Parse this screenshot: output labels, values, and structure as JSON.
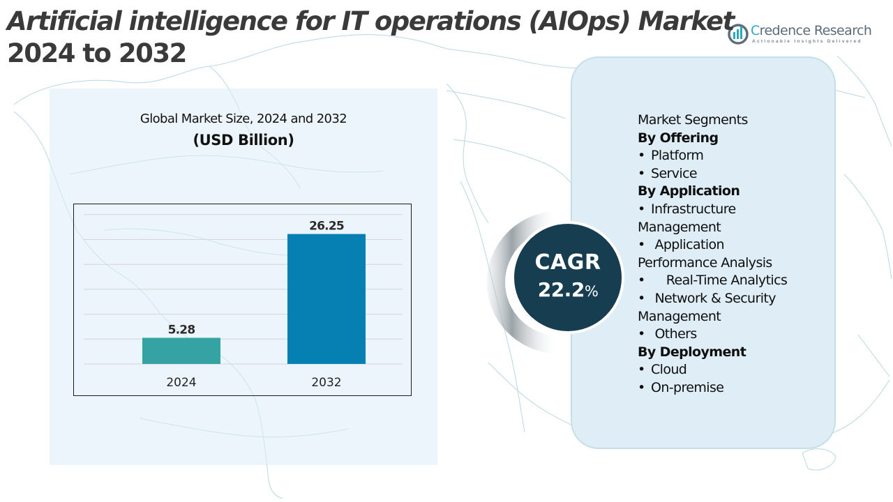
{
  "header": {
    "title_line1": "Artificial intelligence for IT operations (AIOps) Market",
    "title_line2": "2024 to 2032"
  },
  "logo": {
    "name_first_letter": "C",
    "name_rest": "redence Research",
    "tagline": "Actionable Insights Delivered",
    "icon": "bar-chart-globe-icon"
  },
  "chart_section": {
    "title": "Global Market Size, 2024 and 2032",
    "unit": "(USD Billion)"
  },
  "chart_data": {
    "type": "bar",
    "title": "Global Market Size, 2024 and 2032",
    "subtitle": "(USD Billion)",
    "categories": [
      "2024",
      "2032"
    ],
    "values": [
      5.28,
      26.25
    ],
    "data_labels": [
      "5.28",
      "26.25"
    ],
    "colors": [
      "#35a3a3",
      "#0680b3"
    ],
    "xlabel": "",
    "ylabel": "",
    "ylim": [
      0,
      30
    ],
    "gridlines": 7,
    "grid": true,
    "legend": "none"
  },
  "cagr": {
    "label": "CAGR",
    "value": "22.2",
    "unit": "%"
  },
  "segments": {
    "heading": "Market Segments",
    "lines": [
      {
        "type": "head",
        "text": "By Offering"
      },
      {
        "type": "item",
        "bullet": "•",
        "text": "Platform"
      },
      {
        "type": "item",
        "bullet": "•",
        "text": "Service"
      },
      {
        "type": "head",
        "text": "By Application"
      },
      {
        "type": "item",
        "bullet": "•",
        "text": "Infrastructure"
      },
      {
        "type": "cont",
        "text": "Management"
      },
      {
        "type": "item",
        "bullet": "•",
        "text": " Application"
      },
      {
        "type": "cont",
        "text": "Performance Analysis"
      },
      {
        "type": "item",
        "bullet": "•",
        "text": "    Real-Time Analytics"
      },
      {
        "type": "item",
        "bullet": "•",
        "text": " Network & Security"
      },
      {
        "type": "cont",
        "text": "Management"
      },
      {
        "type": "item",
        "bullet": "•",
        "text": " Others"
      },
      {
        "type": "head",
        "text": "By Deployment"
      },
      {
        "type": "item",
        "bullet": "•",
        "text": "Cloud"
      },
      {
        "type": "item",
        "bullet": "•",
        "text": "On-premise"
      }
    ]
  },
  "colors": {
    "title_text": "#3a3a3a",
    "cagr_circle": "#173d50",
    "segment_panel": "#deedf6",
    "bar_2024": "#35a3a3",
    "bar_2032": "#0680b3"
  }
}
